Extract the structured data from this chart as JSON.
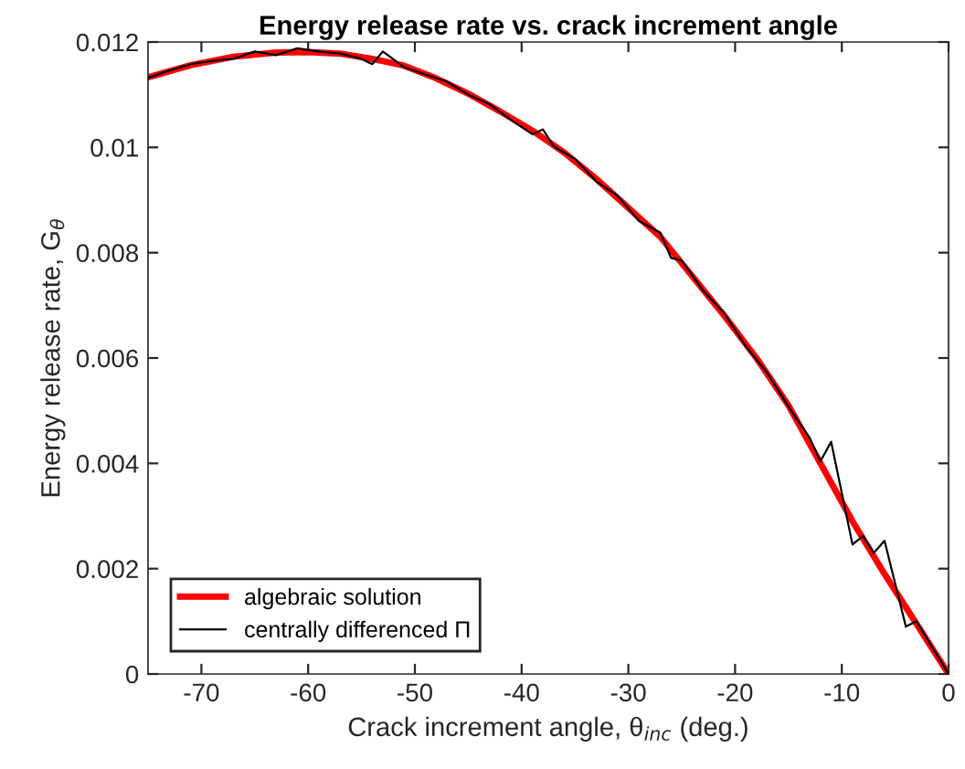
{
  "chart_data": {
    "type": "line",
    "title": "Energy release rate vs. crack increment angle",
    "xlabel": "Crack increment angle, θ$_{inc}$ (deg.)",
    "ylabel": "Energy release rate, G$_{θ}$",
    "xlim": [
      -75,
      0
    ],
    "xticks": [
      -70,
      -60,
      -50,
      -40,
      -30,
      -20,
      -10,
      0
    ],
    "ylim": [
      0,
      0.012
    ],
    "yticks": [
      0,
      0.002,
      0.004,
      0.006,
      0.008,
      0.01,
      0.012
    ],
    "grid": false,
    "legend": "bottom left",
    "marker": "none",
    "line_style": "solid",
    "series": [
      {
        "name": "algebraic solution",
        "color": "#ff0000",
        "x": [
          -75,
          -71,
          -67,
          -63,
          -60,
          -57,
          -54,
          -51,
          -48,
          -45,
          -42,
          -39,
          -36,
          -33,
          -30,
          -27,
          -24,
          -21,
          -18,
          -15,
          -12,
          -9,
          -6,
          -3,
          0
        ],
        "values": [
          0.01133,
          0.01156,
          0.01172,
          0.0118,
          0.01181,
          0.01178,
          0.01168,
          0.01155,
          0.01131,
          0.01102,
          0.01068,
          0.01032,
          0.0099,
          0.0094,
          0.00885,
          0.0083,
          0.00755,
          0.0068,
          0.006,
          0.0051,
          0.004,
          0.0029,
          0.0019,
          0.00095,
          0
        ]
      },
      {
        "name": "centrally differenced Π",
        "color": "#000000",
        "x": [
          -75,
          -73,
          -71,
          -69,
          -67,
          -65,
          -63,
          -61,
          -59,
          -57,
          -55,
          -54,
          -53,
          -51,
          -49,
          -47,
          -45,
          -43,
          -41,
          -39,
          -38,
          -37,
          -35,
          -33,
          -31,
          -29,
          -27,
          -26,
          -25,
          -23,
          -21,
          -19,
          -17,
          -15,
          -13,
          -12,
          -11,
          -9,
          -8,
          -7,
          -6,
          -4,
          -3,
          0
        ],
        "values": [
          0.01132,
          0.01146,
          0.01158,
          0.01164,
          0.01168,
          0.01182,
          0.01175,
          0.01188,
          0.01182,
          0.01178,
          0.01168,
          0.01158,
          0.01182,
          0.01152,
          0.01138,
          0.01125,
          0.011,
          0.01082,
          0.01052,
          0.01025,
          0.01034,
          0.01002,
          0.00978,
          0.00935,
          0.00908,
          0.0086,
          0.00838,
          0.0079,
          0.00785,
          0.00728,
          0.00685,
          0.00622,
          0.00572,
          0.00508,
          0.00448,
          0.00404,
          0.00441,
          0.00246,
          0.00262,
          0.0023,
          0.00253,
          0.0009,
          0.001,
          0
        ]
      }
    ]
  }
}
